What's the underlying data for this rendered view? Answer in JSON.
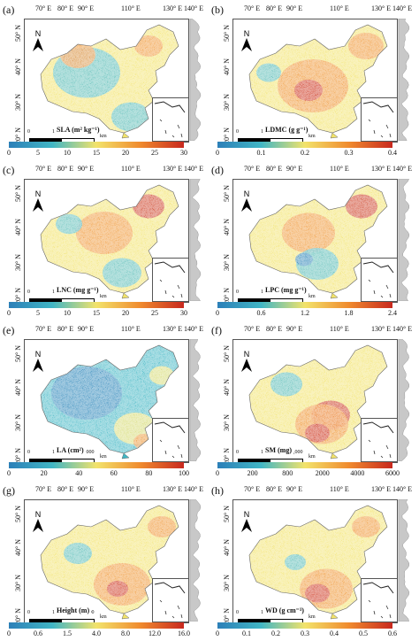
{
  "lon_labels": [
    "70° E",
    "80° E",
    "90° E",
    "110° E",
    "130° E",
    "140° E"
  ],
  "lat_labels": [
    "50° N",
    "40° N",
    "30° N",
    "20° N"
  ],
  "scale_labels": [
    "0",
    "1,000",
    "2,000",
    "km"
  ],
  "north_label": "N",
  "colors": {
    "blue": "#2c7fb8",
    "teal": "#41b6c4",
    "yellow": "#f2e36b",
    "orange": "#f08b2e",
    "red": "#c8281e"
  },
  "panels": [
    {
      "label": "(a)",
      "variable": "SLA (m² kg⁻¹)",
      "ticks": [
        "0",
        "5",
        "10",
        "15",
        "20",
        "25",
        "30"
      ],
      "palette": "a"
    },
    {
      "label": "(b)",
      "variable": "LDMC (g g⁻¹)",
      "ticks": [
        "0",
        "0.1",
        "0.2",
        "0.3",
        "0.4"
      ],
      "palette": "b"
    },
    {
      "label": "(c)",
      "variable": "LNC (mg g⁻¹)",
      "ticks": [
        "0",
        "5",
        "10",
        "15",
        "20",
        "25",
        "30"
      ],
      "palette": "c"
    },
    {
      "label": "(d)",
      "variable": "LPC (mg g⁻¹)",
      "ticks": [
        "0",
        "0.6",
        "1.2",
        "1.8",
        "2.4"
      ],
      "palette": "d"
    },
    {
      "label": "(e)",
      "variable": "LA (cm²)",
      "ticks": [
        "0",
        "20",
        "40",
        "60",
        "80",
        "100"
      ],
      "palette": "e"
    },
    {
      "label": "(f)",
      "variable": "SM (mg)",
      "ticks": [
        "0",
        "200",
        "800",
        "2000",
        "4000",
        "6000"
      ],
      "palette": "f"
    },
    {
      "label": "(g)",
      "variable": "Height (m)",
      "ticks": [
        "0",
        "0.6",
        "1.5",
        "4.0",
        "8.0",
        "12.0",
        "16.0"
      ],
      "palette": "g"
    },
    {
      "label": "(h)",
      "variable": "WD (g cm⁻³)",
      "ticks": [
        "0",
        "0.1",
        "0.2",
        "0.3",
        "0.4",
        "0.5",
        "0.6"
      ],
      "palette": "h"
    }
  ]
}
